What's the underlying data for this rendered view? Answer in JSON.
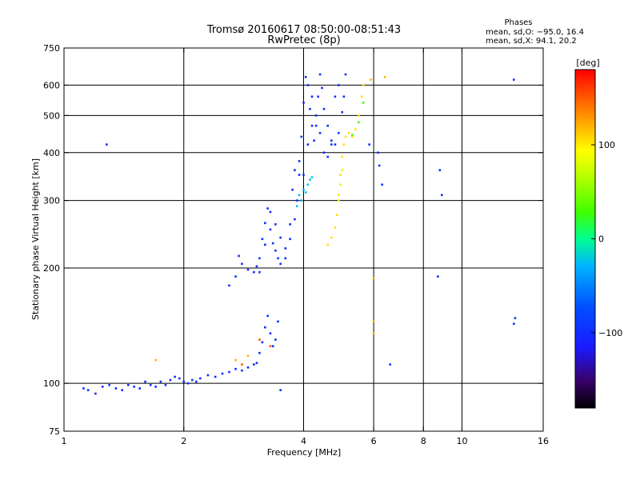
{
  "chart_data": {
    "type": "scatter",
    "title": "Tromsø 20160617 08:50:00-08:51:43",
    "subtitle": "RwPretec (8p)",
    "xlabel": "Frequency [MHz]",
    "ylabel": "Stationary phase Virtual Height [km]",
    "x_scale": "log",
    "y_scale": "log",
    "xlim": [
      1,
      16
    ],
    "ylim": [
      75,
      750
    ],
    "x_ticks": [
      1,
      2,
      4,
      6,
      8,
      10,
      16
    ],
    "x_tick_labels": [
      "1",
      "2",
      "4",
      "6",
      "8",
      "10",
      "16"
    ],
    "y_ticks": [
      75,
      100,
      200,
      300,
      400,
      500,
      600,
      750
    ],
    "y_tick_labels": [
      "75",
      "100",
      "200",
      "300",
      "400",
      "500",
      "600",
      "750"
    ],
    "x_gridlines": [
      2,
      4,
      6,
      8,
      10
    ],
    "y_gridlines": [
      100,
      200,
      300,
      400,
      500,
      600
    ],
    "grid": true,
    "legend_lines": [
      "Phases",
      "mean, sd,O: −95.0, 16.4",
      "mean, sd,X:  94.1, 20.2"
    ],
    "colorbar": {
      "label": "[deg]",
      "range": [
        -180,
        180
      ],
      "ticks": [
        -100,
        0,
        100
      ],
      "tick_labels": [
        "−100",
        "0",
        "100"
      ]
    },
    "traces": [
      {
        "phase": -100,
        "points": [
          [
            1.12,
            97
          ],
          [
            1.15,
            96
          ],
          [
            1.2,
            94
          ],
          [
            1.25,
            98
          ],
          [
            1.3,
            99
          ],
          [
            1.35,
            97
          ],
          [
            1.4,
            96
          ],
          [
            1.45,
            99
          ],
          [
            1.5,
            98
          ],
          [
            1.55,
            97
          ],
          [
            1.6,
            101
          ],
          [
            1.65,
            99
          ],
          [
            1.7,
            98
          ],
          [
            1.75,
            101
          ],
          [
            1.8,
            99
          ],
          [
            1.85,
            102
          ],
          [
            1.9,
            104
          ],
          [
            1.95,
            103
          ],
          [
            2.0,
            101
          ],
          [
            2.05,
            100
          ],
          [
            2.1,
            102
          ],
          [
            2.15,
            101
          ],
          [
            2.2,
            103
          ],
          [
            2.3,
            105
          ],
          [
            2.4,
            104
          ],
          [
            2.5,
            106
          ],
          [
            2.6,
            107
          ],
          [
            2.7,
            109
          ],
          [
            2.8,
            108
          ],
          [
            2.9,
            110
          ],
          [
            3.0,
            112
          ],
          [
            3.05,
            113
          ],
          [
            3.1,
            120
          ],
          [
            3.15,
            128
          ],
          [
            3.2,
            140
          ],
          [
            3.25,
            150
          ],
          [
            3.3,
            135
          ],
          [
            3.35,
            125
          ],
          [
            3.4,
            130
          ],
          [
            3.45,
            145
          ]
        ]
      },
      {
        "phase": -100,
        "points": [
          [
            2.6,
            180
          ],
          [
            2.7,
            190
          ],
          [
            2.75,
            215
          ],
          [
            2.8,
            205
          ],
          [
            2.9,
            198
          ],
          [
            3.0,
            195
          ],
          [
            3.05,
            202
          ],
          [
            3.1,
            212
          ],
          [
            3.15,
            238
          ],
          [
            3.2,
            262
          ],
          [
            3.25,
            286
          ],
          [
            3.3,
            252
          ],
          [
            3.35,
            232
          ],
          [
            3.4,
            222
          ],
          [
            3.45,
            212
          ],
          [
            3.5,
            205
          ],
          [
            3.6,
            212
          ],
          [
            3.7,
            238
          ],
          [
            3.8,
            268
          ],
          [
            3.85,
            300
          ],
          [
            3.9,
            350
          ],
          [
            3.95,
            440
          ],
          [
            4.0,
            540
          ],
          [
            4.05,
            630
          ],
          [
            4.1,
            600
          ],
          [
            4.15,
            520
          ],
          [
            4.2,
            470
          ],
          [
            4.25,
            430
          ],
          [
            4.3,
            470
          ],
          [
            4.35,
            560
          ],
          [
            4.4,
            640
          ],
          [
            4.45,
            590
          ],
          [
            4.5,
            520
          ],
          [
            4.6,
            470
          ],
          [
            4.7,
            430
          ],
          [
            4.8,
            420
          ],
          [
            4.9,
            450
          ],
          [
            5.0,
            510
          ],
          [
            5.05,
            560
          ],
          [
            5.1,
            640
          ]
        ]
      },
      {
        "phase": -100,
        "points": [
          [
            3.1,
            195
          ],
          [
            3.2,
            230
          ],
          [
            3.3,
            280
          ],
          [
            3.4,
            260
          ],
          [
            3.5,
            240
          ],
          [
            3.6,
            225
          ],
          [
            3.7,
            260
          ],
          [
            3.75,
            320
          ],
          [
            3.8,
            360
          ],
          [
            3.9,
            380
          ],
          [
            4.0,
            350
          ],
          [
            4.1,
            420
          ],
          [
            4.2,
            560
          ],
          [
            4.3,
            500
          ],
          [
            4.4,
            450
          ],
          [
            4.5,
            400
          ],
          [
            4.6,
            390
          ],
          [
            4.7,
            420
          ],
          [
            4.8,
            560
          ],
          [
            4.9,
            600
          ]
        ]
      },
      {
        "phase": -25,
        "points": [
          [
            3.85,
            290
          ],
          [
            3.9,
            310
          ],
          [
            4.0,
            320
          ],
          [
            4.1,
            330
          ],
          [
            4.2,
            345
          ],
          [
            3.95,
            300
          ],
          [
            4.05,
            315
          ],
          [
            4.15,
            340
          ]
        ]
      },
      {
        "phase": 105,
        "points": [
          [
            4.6,
            230
          ],
          [
            4.7,
            240
          ],
          [
            4.8,
            255
          ],
          [
            4.85,
            275
          ],
          [
            4.9,
            310
          ],
          [
            4.95,
            350
          ],
          [
            5.0,
            390
          ],
          [
            5.05,
            420
          ],
          [
            5.1,
            440
          ],
          [
            5.2,
            450
          ],
          [
            5.3,
            440
          ],
          [
            5.4,
            460
          ],
          [
            5.5,
            500
          ],
          [
            5.6,
            560
          ],
          [
            5.65,
            600
          ]
        ]
      },
      {
        "phase": 80,
        "points": [
          [
            4.9,
            300
          ],
          [
            4.95,
            330
          ],
          [
            5.0,
            360
          ]
        ]
      },
      {
        "phase": 30,
        "points": [
          [
            5.65,
            540
          ],
          [
            5.5,
            480
          ],
          [
            5.3,
            445
          ]
        ]
      },
      {
        "phase": -100,
        "points": [
          [
            1.28,
            420
          ],
          [
            5.85,
            420
          ],
          [
            6.15,
            400
          ],
          [
            6.2,
            370
          ],
          [
            6.3,
            330
          ],
          [
            8.8,
            360
          ],
          [
            8.9,
            310
          ],
          [
            8.7,
            190
          ],
          [
            13.5,
            620
          ],
          [
            13.6,
            148
          ],
          [
            13.5,
            143
          ],
          [
            6.6,
            112
          ],
          [
            3.5,
            96
          ]
        ]
      },
      {
        "phase": 120,
        "points": [
          [
            5.9,
            620
          ],
          [
            6.4,
            630
          ],
          [
            6.0,
            188
          ],
          [
            6.0,
            145
          ],
          [
            6.0,
            135
          ],
          [
            1.7,
            115
          ],
          [
            2.7,
            115
          ],
          [
            2.9,
            118
          ]
        ]
      },
      {
        "phase": 150,
        "points": [
          [
            3.1,
            130
          ],
          [
            3.3,
            125
          ],
          [
            2.8,
            112
          ]
        ]
      }
    ]
  }
}
